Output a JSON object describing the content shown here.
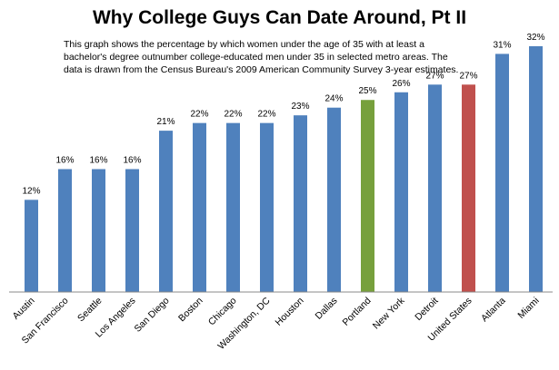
{
  "chart_data": {
    "type": "bar",
    "title": "Why College Guys Can Date Around, Pt II",
    "subtitle": "This graph shows the percentage by which  women under the age of 35 with at least a bachelor's degree outnumber college-educated men  under 35 in selected metro areas.  The data is drawn from the Census Bureau's 2009 American Community Survey 3-year estimates.",
    "xlabel": "",
    "ylabel": "",
    "ylim": [
      0,
      34
    ],
    "grid": false,
    "legend": "none",
    "value_suffix": "%",
    "categories": [
      "Austin",
      "San Francisco",
      "Seattle",
      "Los Angeles",
      "San Diego",
      "Boston",
      "Chicago",
      "Washington, DC",
      "Houston",
      "Dallas",
      "Portland",
      "New York",
      "Detroit",
      "United States",
      "Atlanta",
      "Miami"
    ],
    "values": [
      12,
      16,
      16,
      16,
      21,
      22,
      22,
      22,
      23,
      24,
      25,
      26,
      27,
      27,
      31,
      32
    ],
    "labels": [
      "12%",
      "16%",
      "16%",
      "16%",
      "21%",
      "22%",
      "22%",
      "22%",
      "23%",
      "24%",
      "25%",
      "26%",
      "27%",
      "27%",
      "31%",
      "32%"
    ],
    "colors": {
      "default": "#4f81bd",
      "Portland": "#77a03c",
      "United States": "#c0504d",
      "axis": "#888888"
    }
  }
}
